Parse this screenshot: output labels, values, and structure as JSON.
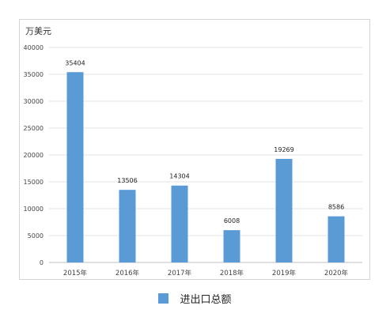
{
  "chart_data": {
    "type": "bar",
    "unit_label": "万美元",
    "categories": [
      "2015年",
      "2016年",
      "2017年",
      "2018年",
      "2019年",
      "2020年"
    ],
    "series": [
      {
        "name": "进出口总额",
        "values": [
          35404,
          13506,
          14304,
          6008,
          19269,
          8586
        ]
      }
    ],
    "ylim": [
      0,
      40000
    ],
    "yticks": [
      0,
      5000,
      10000,
      15000,
      20000,
      25000,
      30000,
      35000,
      40000
    ],
    "grid": true,
    "legend_position": "bottom",
    "bar_color": "#5b9bd5"
  }
}
